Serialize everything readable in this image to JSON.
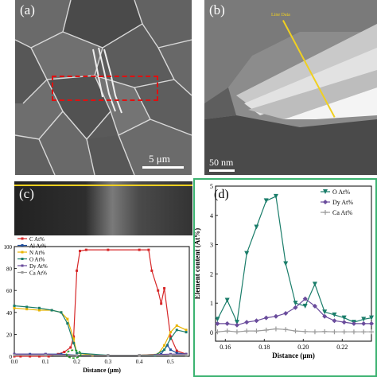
{
  "panels": {
    "a": {
      "label": "(a)",
      "scalebar": "5 μm"
    },
    "b": {
      "label": "(b)",
      "scalebar": "50 nm",
      "line_label": "Line Data"
    },
    "c": {
      "label": "(c)",
      "xlabel": "Distance (μm)"
    },
    "d": {
      "label": "(d)",
      "xlabel": "Distance (μm)",
      "ylabel": "Element content (At%)"
    }
  },
  "colors": {
    "C": "#d62728",
    "Al": "#1f4e9e",
    "N": "#e8b400",
    "O": "#1a7d6a",
    "Dy": "#6a4c9c",
    "Ca": "#9a9a9a",
    "highlight": "#2ca02c",
    "panel_d_border": "#3cb371"
  },
  "chart_data": [
    {
      "type": "line",
      "panel": "c",
      "xlabel": "Distance (μm)",
      "ylabel": "",
      "xlim": [
        0,
        0.56
      ],
      "ylim": [
        0,
        100
      ],
      "xticks": [
        0.0,
        0.1,
        0.2,
        0.3,
        0.4,
        0.5
      ],
      "yticks": [
        0,
        20,
        40,
        60,
        80,
        100
      ],
      "legend": "top-left",
      "series": [
        {
          "name": "C  At%",
          "color": "#d62728",
          "x": [
            0,
            0.02,
            0.05,
            0.08,
            0.11,
            0.14,
            0.16,
            0.18,
            0.19,
            0.2,
            0.21,
            0.23,
            0.3,
            0.4,
            0.43,
            0.44,
            0.46,
            0.47,
            0.48,
            0.5,
            0.52,
            0.55
          ],
          "y": [
            0,
            0,
            0,
            0,
            0,
            2,
            4,
            8,
            18,
            78,
            96,
            97,
            97,
            97,
            97,
            78,
            60,
            48,
            62,
            18,
            5,
            2
          ]
        },
        {
          "name": "Al At%",
          "color": "#1f4e9e",
          "x": [
            0,
            0.05,
            0.1,
            0.15,
            0.2,
            0.3,
            0.4,
            0.47,
            0.49,
            0.5,
            0.52,
            0.55
          ],
          "y": [
            2,
            2,
            2,
            2,
            1,
            1,
            1,
            2,
            10,
            6,
            3,
            2
          ]
        },
        {
          "name": "N  At%",
          "color": "#e8b400",
          "x": [
            0,
            0.04,
            0.08,
            0.12,
            0.15,
            0.17,
            0.19,
            0.2,
            0.25,
            0.4,
            0.46,
            0.48,
            0.5,
            0.52,
            0.55
          ],
          "y": [
            44,
            43,
            42,
            42,
            40,
            34,
            16,
            3,
            1,
            1,
            2,
            10,
            22,
            28,
            24
          ]
        },
        {
          "name": "O  At%",
          "color": "#1a7d6a",
          "x": [
            0,
            0.04,
            0.08,
            0.12,
            0.15,
            0.17,
            0.19,
            0.2,
            0.3,
            0.45,
            0.48,
            0.5,
            0.52,
            0.55
          ],
          "y": [
            46,
            45,
            44,
            42,
            40,
            30,
            12,
            3,
            1,
            1,
            6,
            16,
            24,
            22
          ]
        },
        {
          "name": "Dy At%",
          "color": "#6a4c9c",
          "x": [
            0,
            0.1,
            0.2,
            0.3,
            0.4,
            0.5,
            0.55
          ],
          "y": [
            2,
            2,
            1,
            1,
            1,
            2,
            2
          ]
        },
        {
          "name": "Ca At%",
          "color": "#9a9a9a",
          "x": [
            0,
            0.1,
            0.2,
            0.3,
            0.4,
            0.5,
            0.55
          ],
          "y": [
            1,
            1,
            1,
            1,
            1,
            1,
            1
          ]
        }
      ]
    },
    {
      "type": "line",
      "panel": "d",
      "xlabel": "Distance (μm)",
      "ylabel": "Element content (At%)",
      "xlim": [
        0.155,
        0.235
      ],
      "ylim": [
        -0.3,
        5
      ],
      "xticks": [
        0.16,
        0.18,
        0.2,
        0.22
      ],
      "xtick_labels": [
        "0.16",
        "0.18",
        "0.20",
        "0.22"
      ],
      "yticks": [
        0,
        1,
        2,
        3,
        4,
        5
      ],
      "legend": "top-right",
      "series": [
        {
          "name": "O  At%",
          "color": "#1a7d6a",
          "marker": "triangle-down",
          "x": [
            0.156,
            0.161,
            0.166,
            0.171,
            0.176,
            0.181,
            0.186,
            0.191,
            0.196,
            0.201,
            0.206,
            0.211,
            0.216,
            0.221,
            0.226,
            0.231,
            0.235
          ],
          "y": [
            0.45,
            1.1,
            0.35,
            2.7,
            3.6,
            4.5,
            4.65,
            2.35,
            1.0,
            0.9,
            1.65,
            0.7,
            0.6,
            0.5,
            0.35,
            0.45,
            0.5
          ]
        },
        {
          "name": "Dy At%",
          "color": "#6a4c9c",
          "marker": "diamond",
          "x": [
            0.156,
            0.161,
            0.166,
            0.171,
            0.176,
            0.181,
            0.186,
            0.191,
            0.196,
            0.201,
            0.206,
            0.211,
            0.216,
            0.221,
            0.226,
            0.231,
            0.235
          ],
          "y": [
            0.3,
            0.3,
            0.25,
            0.35,
            0.4,
            0.5,
            0.55,
            0.65,
            0.85,
            1.15,
            0.9,
            0.55,
            0.4,
            0.35,
            0.3,
            0.3,
            0.3
          ]
        },
        {
          "name": "Ca At%",
          "color": "#9a9a9a",
          "marker": "plus",
          "x": [
            0.156,
            0.161,
            0.166,
            0.171,
            0.176,
            0.181,
            0.186,
            0.191,
            0.196,
            0.201,
            0.206,
            0.211,
            0.216,
            0.221,
            0.226,
            0.231,
            0.235
          ],
          "y": [
            0.02,
            0.05,
            0.02,
            0.05,
            0.05,
            0.08,
            0.12,
            0.1,
            0.05,
            0.03,
            0.02,
            0.03,
            0.02,
            0.02,
            0.02,
            0.02,
            0.02
          ]
        }
      ]
    }
  ]
}
